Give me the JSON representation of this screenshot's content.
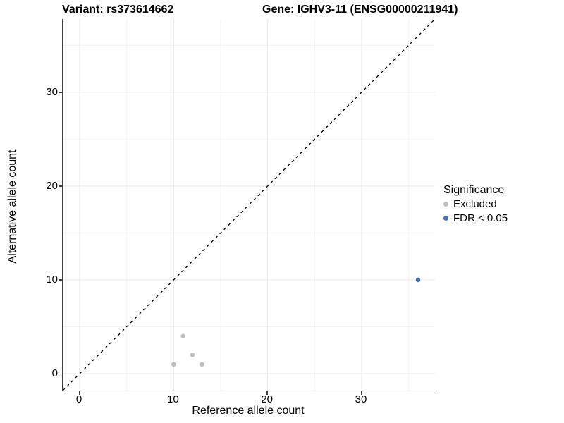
{
  "figure": {
    "title_left": "Variant: rs373614662",
    "title_right": "Gene: IGHV3-11 (ENSG00000211941)"
  },
  "chart_data": {
    "type": "scatter",
    "title": "Variant: rs373614662 — Gene: IGHV3-11 (ENSG00000211941)",
    "xlabel": "Reference allele count",
    "ylabel": "Alternative allele count",
    "xlim": [
      -1.8,
      37.8
    ],
    "ylim": [
      -1.8,
      37.8
    ],
    "x_ticks": [
      0,
      10,
      20,
      30
    ],
    "y_ticks": [
      0,
      10,
      20,
      30
    ],
    "x_minor_ticks": [
      5,
      15,
      25,
      35
    ],
    "y_minor_ticks": [
      5,
      15,
      25,
      35
    ],
    "grid": true,
    "legend": {
      "title": "Significance",
      "position": "right"
    },
    "reference_line": {
      "kind": "identity",
      "style": "dashed",
      "color": "#000000"
    },
    "series": [
      {
        "name": "Excluded",
        "color": "#bfbfbf",
        "points": [
          [
            10,
            1
          ],
          [
            11,
            4
          ],
          [
            12,
            2
          ],
          [
            13,
            1
          ]
        ]
      },
      {
        "name": "FDR < 0.05",
        "color": "#4575b4",
        "points": [
          [
            36,
            10
          ]
        ]
      }
    ],
    "style": {
      "major_grid_color": "#e9e9e9",
      "minor_grid_color": "#f4f4f4",
      "axis_line_color": "#404040",
      "point_radius": 3.3
    }
  }
}
